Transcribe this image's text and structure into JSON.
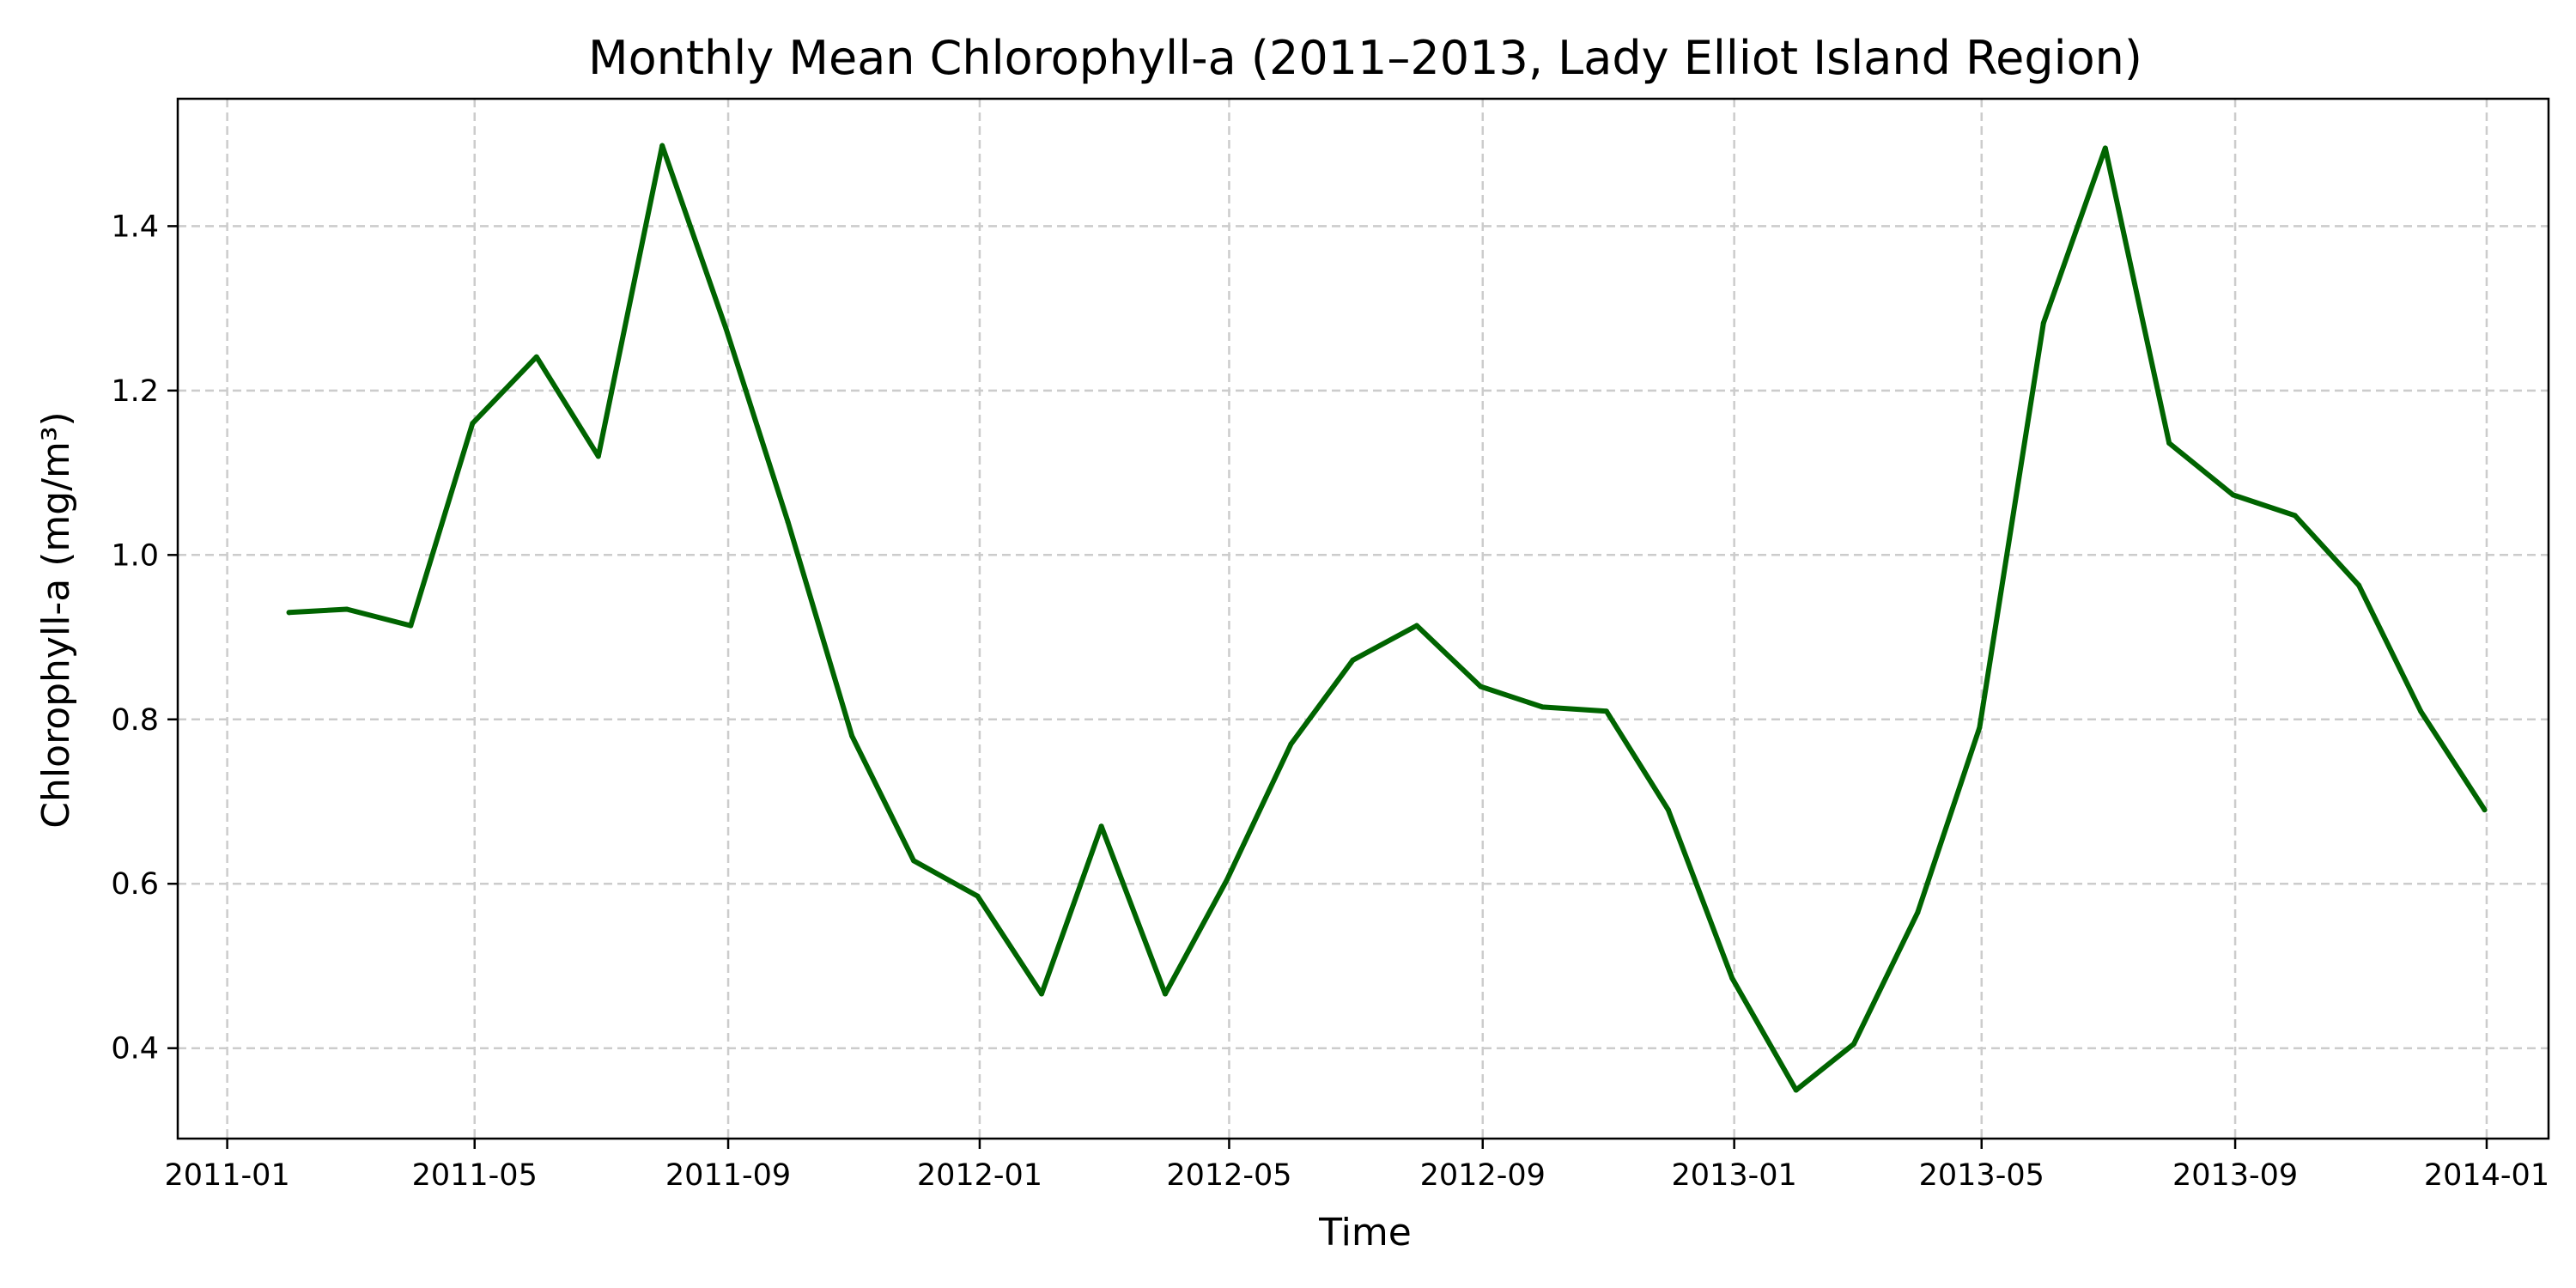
{
  "chart_data": {
    "type": "line",
    "title": "Monthly Mean Chlorophyll-a (2011–2013, Lady Elliot Island Region)",
    "xlabel": "Time",
    "ylabel": "Chlorophyll-a (mg/m³)",
    "xlim": [
      "2010-12-08",
      "2014-01-31"
    ],
    "ylim": [
      0.29,
      1.555
    ],
    "x_ticks": [
      "2011-01",
      "2011-05",
      "2011-09",
      "2012-01",
      "2012-05",
      "2012-09",
      "2013-01",
      "2013-05",
      "2013-09",
      "2014-01"
    ],
    "y_ticks": [
      "0.4",
      "0.6",
      "0.8",
      "1.0",
      "1.2",
      "1.4"
    ],
    "grid": true,
    "line_color": "#006400",
    "series": [
      {
        "x": [
          "2011-01-31",
          "2011-02-28",
          "2011-03-31",
          "2011-04-30",
          "2011-05-31",
          "2011-06-30",
          "2011-07-31",
          "2011-08-31",
          "2011-09-30",
          "2011-10-31",
          "2011-11-30",
          "2011-12-31",
          "2012-01-31",
          "2012-02-29",
          "2012-03-31",
          "2012-04-30",
          "2012-05-31",
          "2012-06-30",
          "2012-07-31",
          "2012-08-31",
          "2012-09-30",
          "2012-10-31",
          "2012-11-30",
          "2012-12-31",
          "2013-01-31",
          "2013-02-28",
          "2013-03-31",
          "2013-04-30",
          "2013-05-31",
          "2013-06-30",
          "2013-07-31",
          "2013-08-31",
          "2013-09-30",
          "2013-10-31",
          "2013-11-30",
          "2013-12-31"
        ],
        "values": [
          0.93,
          0.934,
          0.914,
          1.16,
          1.241,
          1.12,
          1.498,
          1.275,
          1.04,
          0.78,
          0.628,
          0.585,
          0.466,
          0.67,
          0.466,
          0.605,
          0.77,
          0.872,
          0.914,
          0.84,
          0.815,
          0.81,
          0.69,
          0.485,
          0.349,
          0.405,
          0.565,
          0.79,
          1.282,
          1.495,
          1.136,
          1.073,
          1.048,
          0.963,
          0.81,
          0.69
        ]
      }
    ]
  }
}
